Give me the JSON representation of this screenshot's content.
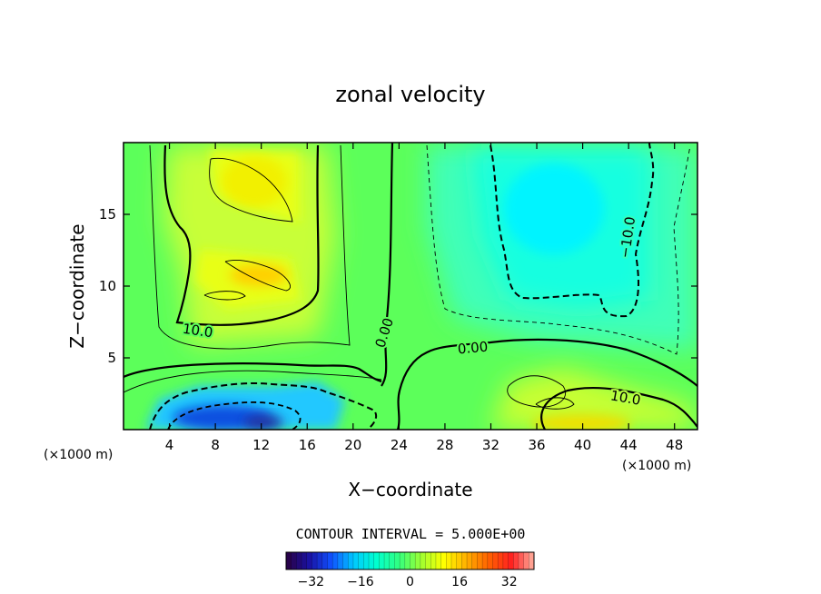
{
  "chart_data": {
    "type": "heatmap",
    "title": "zonal velocity",
    "xlabel": "X−coordinate",
    "ylabel": "Z−coordinate",
    "x_unit_left": "(×1000 m)",
    "x_unit_right": "(×1000 m)",
    "xlim": [
      0,
      50
    ],
    "ylim": [
      0,
      20
    ],
    "x_ticks": [
      4,
      8,
      12,
      16,
      20,
      24,
      28,
      32,
      36,
      40,
      44,
      48
    ],
    "y_ticks": [
      5,
      10,
      15
    ],
    "contour_interval_label": "CONTOUR INTERVAL = 5.000E+00",
    "contour_interval": 5,
    "contour_labels": [
      {
        "text": "10.0",
        "x": 6.5,
        "y": 6.8
      },
      {
        "text": "0.00",
        "x": 23.0,
        "y": 6.5
      },
      {
        "text": "0.00",
        "x": 30.5,
        "y": 5.7
      },
      {
        "text": "10.0",
        "x": 44.0,
        "y": 2.3
      },
      {
        "text": "−10.0",
        "x": 43.5,
        "y": 13.5
      }
    ],
    "features": [
      {
        "kind": "max",
        "x": 11.5,
        "y": 17.5,
        "value": 12
      },
      {
        "kind": "max",
        "x": 11.5,
        "y": 10.7,
        "value": 15
      },
      {
        "kind": "min",
        "x": 10.0,
        "y": 0.8,
        "value": -25
      },
      {
        "kind": "min",
        "x": 37.0,
        "y": 15.0,
        "value": -13
      },
      {
        "kind": "max",
        "x": 40.0,
        "y": 0.6,
        "value": 16
      }
    ],
    "colorbar": {
      "vmin": -40,
      "vmax": 40,
      "ticks": [
        -32,
        -16,
        0,
        16,
        32
      ],
      "tick_labels": [
        "−32",
        "−16",
        "0",
        "16",
        "32"
      ],
      "colormap": [
        "#2a0040",
        "#1a10a0",
        "#1050ff",
        "#00c8ff",
        "#00ffd0",
        "#30ff80",
        "#a0ff30",
        "#ffff00",
        "#ffb000",
        "#ff6000",
        "#ff2020",
        "#ffb0a0"
      ]
    }
  }
}
